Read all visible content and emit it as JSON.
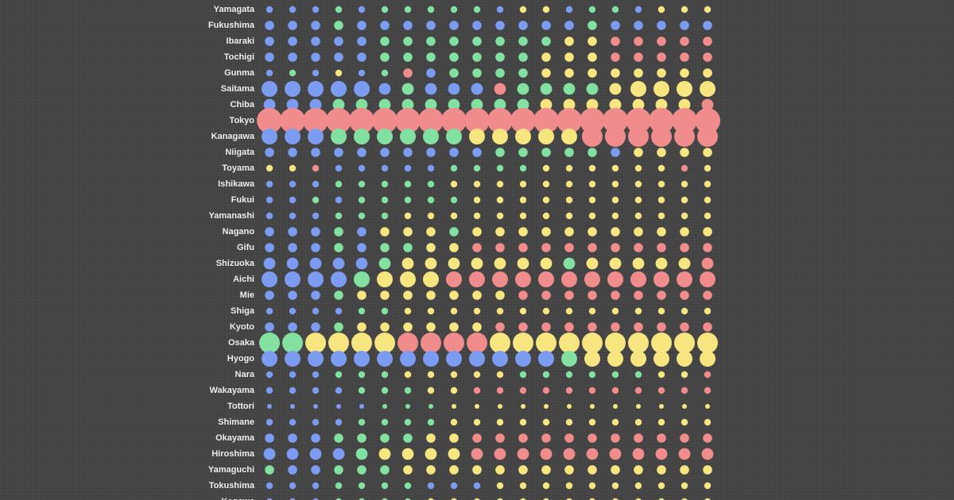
{
  "chart_data": {
    "type": "bubble-matrix",
    "title": "",
    "xlabel": "",
    "ylabel": "",
    "grid": false,
    "legend": "none",
    "size_scale": "1 = smallest dot, 7 = largest dot (relative magnitude)",
    "colors": {
      "b": "#7b9cf0",
      "g": "#82e0a0",
      "y": "#f7e57f",
      "r": "#f08c8c"
    },
    "columns": 20,
    "rows": [
      {
        "name": "Yamagata",
        "colors": "bbbgbgggggbyybggbyyy",
        "sizes": [
          2,
          2,
          2,
          2,
          2,
          2,
          2,
          2,
          2,
          2,
          2,
          2,
          2,
          2,
          2,
          2,
          2,
          2,
          2,
          2
        ]
      },
      {
        "name": "Fukushima",
        "colors": "bbbgbbbbbbbbbbgbbbbb",
        "sizes": [
          3,
          3,
          3,
          3,
          3,
          3,
          3,
          3,
          3,
          3,
          3,
          3,
          3,
          3,
          3,
          3,
          3,
          3,
          3,
          3
        ]
      },
      {
        "name": "Ibaraki",
        "colors": "bbbbbggggggggyyrrrrr",
        "sizes": [
          3,
          3,
          3,
          3,
          3,
          3,
          3,
          3,
          3,
          3,
          3,
          3,
          3,
          3,
          3,
          3,
          3,
          3,
          3,
          3
        ]
      },
      {
        "name": "Tochigi",
        "colors": "bbbbbgggggggyyyrrrrr",
        "sizes": [
          3,
          3,
          3,
          3,
          3,
          3,
          3,
          3,
          3,
          3,
          3,
          3,
          3,
          3,
          3,
          3,
          3,
          3,
          3,
          3
        ]
      },
      {
        "name": "Gunma",
        "colors": "bgbybgrbggggyyyyyyyy",
        "sizes": [
          2,
          2,
          2,
          2,
          2,
          2,
          3,
          3,
          3,
          3,
          3,
          3,
          3,
          3,
          3,
          3,
          3,
          3,
          3,
          3
        ]
      },
      {
        "name": "Saitama",
        "colors": "bbbbbbgbbbrggggyyyyy",
        "sizes": [
          5,
          5,
          5,
          5,
          5,
          4,
          4,
          4,
          4,
          4,
          4,
          4,
          4,
          4,
          4,
          4,
          5,
          5,
          5,
          5
        ]
      },
      {
        "name": "Chiba",
        "colors": "bbbgggggggggyyyyyyyr",
        "sizes": [
          4,
          4,
          4,
          4,
          4,
          4,
          4,
          4,
          4,
          4,
          4,
          4,
          4,
          4,
          4,
          4,
          4,
          4,
          4,
          4
        ]
      },
      {
        "name": "Tokyo",
        "colors": "rrrrrrrrrrrrrrrrrrrr",
        "sizes": [
          7,
          7,
          7,
          7,
          7,
          7,
          7,
          7,
          7,
          7,
          7,
          7,
          7,
          7,
          7,
          7,
          7,
          7,
          7,
          7
        ]
      },
      {
        "name": "Kanagawa",
        "colors": "bbbggggggyyyyyrrrrrr",
        "sizes": [
          5,
          5,
          5,
          5,
          5,
          5,
          5,
          5,
          5,
          5,
          5,
          5,
          5,
          5,
          6,
          6,
          6,
          6,
          6,
          6
        ]
      },
      {
        "name": "Niigata",
        "colors": "bbbbbbbbbbgggggbyyyy",
        "sizes": [
          3,
          3,
          3,
          3,
          3,
          3,
          3,
          3,
          3,
          3,
          3,
          3,
          3,
          3,
          3,
          3,
          3,
          3,
          3,
          3
        ]
      },
      {
        "name": "Toyama",
        "colors": "yyrbbbbbggggyyyyyyry",
        "sizes": [
          2,
          2,
          2,
          2,
          2,
          2,
          2,
          2,
          2,
          2,
          2,
          2,
          2,
          2,
          2,
          2,
          2,
          2,
          2,
          2
        ]
      },
      {
        "name": "Ishikawa",
        "colors": "bbbgggggyyyyyyyyyyyy",
        "sizes": [
          2,
          2,
          2,
          2,
          2,
          2,
          2,
          2,
          2,
          2,
          2,
          2,
          2,
          2,
          2,
          2,
          2,
          2,
          2,
          2
        ]
      },
      {
        "name": "Fukui",
        "colors": "bbgbgggggyyyyyyyyyyy",
        "sizes": [
          2,
          2,
          2,
          2,
          2,
          2,
          2,
          2,
          2,
          2,
          2,
          2,
          2,
          2,
          2,
          2,
          2,
          2,
          2,
          2
        ]
      },
      {
        "name": "Yamanashi",
        "colors": "bbbgggyyyyyyyyyyyyyy",
        "sizes": [
          2,
          2,
          2,
          2,
          2,
          2,
          2,
          2,
          2,
          2,
          2,
          2,
          2,
          2,
          2,
          2,
          2,
          2,
          2,
          2
        ]
      },
      {
        "name": "Nagano",
        "colors": "bbbgbyyygyyyyyyyyyyy",
        "sizes": [
          3,
          3,
          3,
          3,
          3,
          3,
          3,
          3,
          3,
          3,
          3,
          3,
          3,
          3,
          3,
          3,
          3,
          3,
          3,
          3
        ]
      },
      {
        "name": "Gifu",
        "colors": "bbbgbggyyrrrrrrrrrrr",
        "sizes": [
          3,
          3,
          3,
          3,
          3,
          3,
          3,
          3,
          3,
          3,
          3,
          3,
          3,
          3,
          3,
          3,
          3,
          3,
          3,
          3
        ]
      },
      {
        "name": "Shizuoka",
        "colors": "bbbbbgyyyyyyygyyyyyr",
        "sizes": [
          4,
          4,
          4,
          4,
          4,
          4,
          4,
          4,
          4,
          4,
          4,
          4,
          4,
          4,
          4,
          4,
          4,
          4,
          4,
          4
        ]
      },
      {
        "name": "Aichi",
        "colors": "bbbbgyyyrrrrrrrrrrrr",
        "sizes": [
          5,
          5,
          5,
          5,
          5,
          5,
          5,
          5,
          5,
          5,
          5,
          5,
          5,
          5,
          5,
          5,
          5,
          5,
          5,
          5
        ]
      },
      {
        "name": "Mie",
        "colors": "bbbgyyyyyyyrrrrrrrrr",
        "sizes": [
          3,
          3,
          3,
          3,
          3,
          3,
          3,
          3,
          3,
          3,
          3,
          3,
          3,
          3,
          3,
          3,
          3,
          3,
          3,
          3
        ]
      },
      {
        "name": "Shiga",
        "colors": "bbbbggyyyyyyyyyyyyyy",
        "sizes": [
          2,
          2,
          2,
          2,
          2,
          2,
          2,
          2,
          2,
          2,
          2,
          2,
          2,
          2,
          2,
          2,
          2,
          2,
          2,
          2
        ]
      },
      {
        "name": "Kyoto",
        "colors": "bbbgyyyyyyrrrrrrrrrr",
        "sizes": [
          3,
          3,
          3,
          3,
          3,
          3,
          3,
          3,
          3,
          3,
          3,
          3,
          3,
          3,
          3,
          3,
          3,
          3,
          3,
          3
        ]
      },
      {
        "name": "Osaka",
        "colors": "ggyyyyrrrryyyyyyyyyy",
        "sizes": [
          6,
          6,
          6,
          6,
          6,
          6,
          6,
          6,
          6,
          6,
          6,
          6,
          6,
          6,
          6,
          6,
          6,
          6,
          6,
          6
        ]
      },
      {
        "name": "Hyogo",
        "colors": "bbbbbbbbbbbbbgyyyyyy",
        "sizes": [
          5,
          5,
          5,
          5,
          5,
          5,
          5,
          5,
          5,
          5,
          5,
          5,
          5,
          5,
          5,
          5,
          5,
          5,
          5,
          5
        ]
      },
      {
        "name": "Nara",
        "colors": "bbbgggyyyyyggggggyyr",
        "sizes": [
          2,
          2,
          2,
          2,
          2,
          2,
          2,
          2,
          2,
          2,
          2,
          2,
          2,
          2,
          2,
          2,
          2,
          2,
          2,
          2
        ]
      },
      {
        "name": "Wakayama",
        "colors": "bbbbgggyyrrrrrrrrrrr",
        "sizes": [
          2,
          2,
          2,
          2,
          2,
          2,
          2,
          2,
          2,
          2,
          2,
          2,
          2,
          2,
          2,
          2,
          2,
          2,
          2,
          2
        ]
      },
      {
        "name": "Tottori",
        "colors": "bbbbbgggyyyyyyyyyyyy",
        "sizes": [
          1,
          1,
          1,
          1,
          1,
          1,
          1,
          1,
          1,
          1,
          1,
          1,
          1,
          1,
          1,
          1,
          1,
          1,
          1,
          1
        ]
      },
      {
        "name": "Shimane",
        "colors": "bbbbggggyyyyyyyyyyyy",
        "sizes": [
          2,
          2,
          2,
          2,
          2,
          2,
          2,
          2,
          2,
          2,
          2,
          2,
          2,
          2,
          2,
          2,
          2,
          2,
          2,
          2
        ]
      },
      {
        "name": "Okayama",
        "colors": "bbbggggyyrrrrrrrrrrr",
        "sizes": [
          3,
          3,
          3,
          3,
          3,
          3,
          3,
          3,
          3,
          3,
          3,
          3,
          3,
          3,
          3,
          3,
          3,
          3,
          3,
          3
        ]
      },
      {
        "name": "Hiroshima",
        "colors": "bbbbgyyyyrrrrrrrrrrr",
        "sizes": [
          4,
          4,
          4,
          4,
          4,
          4,
          4,
          4,
          4,
          4,
          4,
          4,
          4,
          4,
          4,
          4,
          4,
          4,
          4,
          4
        ]
      },
      {
        "name": "Yamaguchi",
        "colors": "gbbgggyyyyyyyyyyyyyy",
        "sizes": [
          3,
          3,
          3,
          3,
          3,
          3,
          3,
          3,
          3,
          3,
          3,
          3,
          3,
          3,
          3,
          3,
          3,
          3,
          3,
          3
        ]
      },
      {
        "name": "Tokushima",
        "colors": "bbbggggbbbyyyyyyyyyy",
        "sizes": [
          2,
          2,
          2,
          2,
          2,
          2,
          2,
          2,
          2,
          2,
          2,
          2,
          2,
          2,
          2,
          2,
          2,
          2,
          2,
          2
        ]
      },
      {
        "name": "Kagawa",
        "colors": "bbbggggyyyyyyyyyyyyy",
        "sizes": [
          2,
          2,
          2,
          2,
          2,
          2,
          2,
          2,
          2,
          2,
          2,
          2,
          2,
          2,
          2,
          2,
          2,
          2,
          2,
          2
        ]
      }
    ]
  }
}
